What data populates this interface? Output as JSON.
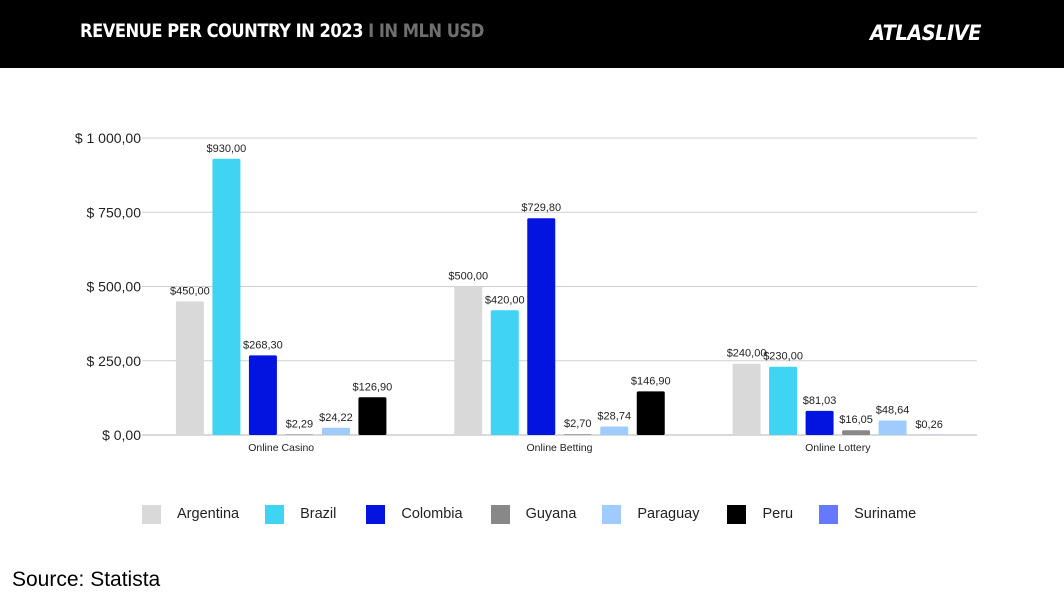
{
  "header": {
    "title": "REVENUE PER COUNTRY IN 2023",
    "subtitle": " I IN MLN USD",
    "logo": "ATLASLIVE"
  },
  "source": "Source: Statista",
  "colors": {
    "Argentina": "#d9d9d9",
    "Brazil": "#3fd4f4",
    "Colombia": "#0314e0",
    "Guyana": "#888888",
    "Paraguay": "#9fcbff",
    "Peru": "#000000",
    "Suriname": "#6678ff"
  },
  "chart_data": {
    "type": "bar",
    "title": "REVENUE PER COUNTRY IN 2023 I IN MLN USD",
    "xlabel": "",
    "ylabel": "",
    "ylim": [
      0,
      1000
    ],
    "yticks": [
      0,
      250,
      500,
      750,
      1000
    ],
    "ytick_labels": [
      "$ 0,00",
      "$ 250,00",
      "$ 500,00",
      "$ 750,00",
      "$ 1 000,00"
    ],
    "grid": true,
    "legend_position": "bottom",
    "categories": [
      "Online Casino",
      "Online Betting",
      "Online Lottery"
    ],
    "legend": [
      "Argentina",
      "Brazil",
      "Colombia",
      "Guyana",
      "Paraguay",
      "Peru",
      "Suriname"
    ],
    "groups": [
      {
        "category": "Online Casino",
        "bars": [
          {
            "series": "Argentina",
            "value": 450.0,
            "label": "$450,00"
          },
          {
            "series": "Brazil",
            "value": 930.0,
            "label": "$930,00"
          },
          {
            "series": "Colombia",
            "value": 268.3,
            "label": "$268,30"
          },
          {
            "series": "Guyana",
            "value": 2.29,
            "label": "$2,29"
          },
          {
            "series": "Paraguay",
            "value": 24.22,
            "label": "$24,22"
          },
          {
            "series": "Peru",
            "value": 126.9,
            "label": "$126,90"
          }
        ]
      },
      {
        "category": "Online Betting",
        "bars": [
          {
            "series": "Argentina",
            "value": 500.0,
            "label": "$500,00"
          },
          {
            "series": "Brazil",
            "value": 420.0,
            "label": "$420,00"
          },
          {
            "series": "Colombia",
            "value": 729.8,
            "label": "$729,80"
          },
          {
            "series": "Guyana",
            "value": 2.7,
            "label": "$2,70"
          },
          {
            "series": "Paraguay",
            "value": 28.74,
            "label": "$28,74"
          },
          {
            "series": "Peru",
            "value": 146.9,
            "label": "$146,90"
          }
        ]
      },
      {
        "category": "Online Lottery",
        "bars": [
          {
            "series": "Argentina",
            "value": 240.0,
            "label": "$240,00"
          },
          {
            "series": "Brazil",
            "value": 230.0,
            "label": "$230,00"
          },
          {
            "series": "Colombia",
            "value": 81.03,
            "label": "$81,03"
          },
          {
            "series": "Guyana",
            "value": 16.05,
            "label": "$16,05"
          },
          {
            "series": "Paraguay",
            "value": 48.64,
            "label": "$48,64"
          },
          {
            "series": "Suriname",
            "value": 0.26,
            "label": "$0,26"
          }
        ]
      }
    ]
  }
}
